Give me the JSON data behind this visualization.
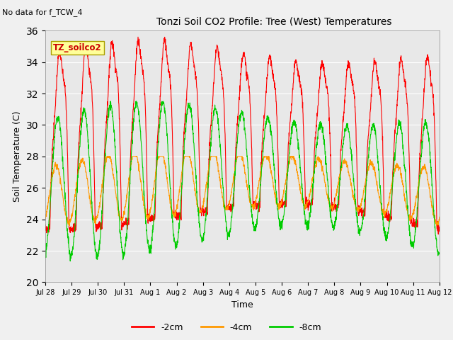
{
  "title": "Tonzi Soil CO2 Profile: Tree (West) Temperatures",
  "no_data_text": "No data for f_TCW_4",
  "box_label": "TZ_soilco2",
  "ylabel": "Soil Temperature (C)",
  "xlabel": "Time",
  "ylim": [
    20,
    36
  ],
  "bg_color": "#e8e8e8",
  "fig_bg_color": "#f0f0f0",
  "xtick_labels": [
    "Jul 28",
    "Jul 29",
    "Jul 30",
    "Jul 31",
    "Aug 1",
    "Aug 2",
    "Aug 3",
    "Aug 4",
    "Aug 5",
    "Aug 6",
    "Aug 7",
    "Aug 8",
    "Aug 9",
    "Aug 10",
    "Aug 11",
    "Aug 12"
  ],
  "line_colors": {
    "m2cm": "#ff0000",
    "m4cm": "#ff9900",
    "m8cm": "#00cc00"
  },
  "legend_labels": [
    "-2cm",
    "-4cm",
    "-8cm"
  ],
  "legend_colors": [
    "#ff0000",
    "#ff9900",
    "#00cc00"
  ],
  "yticks": [
    20,
    22,
    24,
    26,
    28,
    30,
    32,
    34,
    36
  ]
}
